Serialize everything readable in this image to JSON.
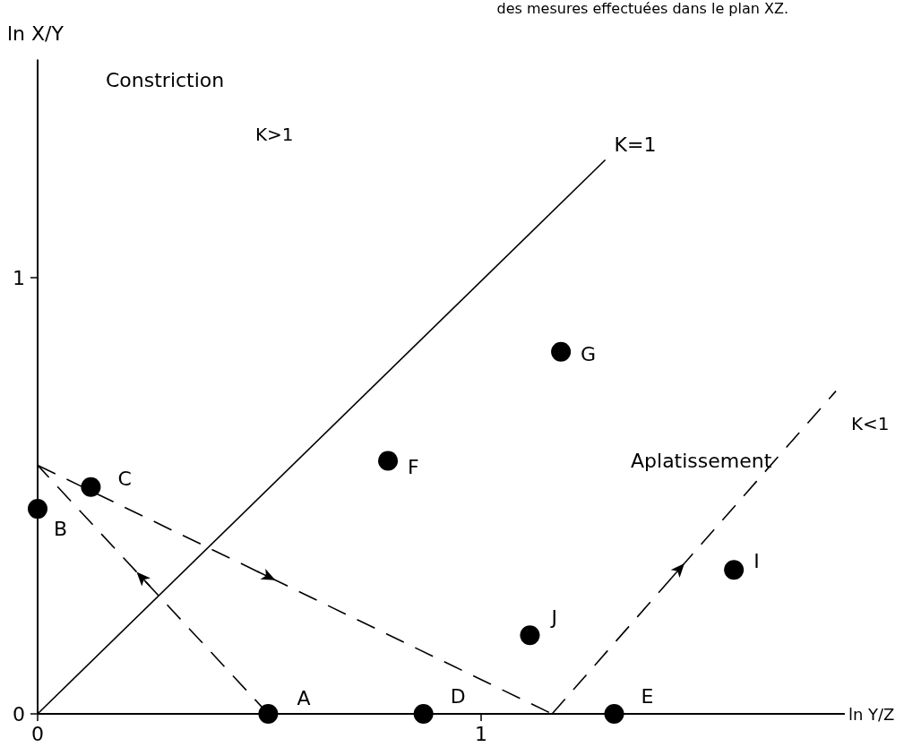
{
  "chart_data": {
    "type": "scatter",
    "xlabel": "ln Y/Z",
    "ylabel": "ln X/Y",
    "xlim": [
      0,
      1.82
    ],
    "ylim": [
      0,
      1.5
    ],
    "xticks": [
      0,
      1
    ],
    "yticks": [
      0,
      1
    ],
    "grid": false,
    "marker": "circle",
    "series": [
      {
        "color": "#000000",
        "x": [
          0.52,
          0,
          0.12,
          0.87,
          1.3,
          0.79,
          1.18,
          1.57,
          1.11
        ],
        "values": [
          0,
          0.47,
          0.52,
          0,
          0,
          0.58,
          0.83,
          0.33,
          0.18
        ]
      },
      {
        "type": "line",
        "color": "#000000",
        "line_style": "solid",
        "marker": "none",
        "x": [
          0,
          1.28
        ],
        "values": [
          0,
          1.27
        ]
      },
      {
        "type": "line",
        "color": "#000000",
        "line_style": "dashed",
        "marker": "none",
        "x": [
          0.52,
          0
        ],
        "values": [
          0,
          0.57
        ]
      },
      {
        "type": "line",
        "color": "#000000",
        "line_style": "dashed",
        "marker": "none",
        "x": [
          0,
          1.16
        ],
        "values": [
          0.57,
          0
        ]
      },
      {
        "type": "line",
        "color": "#000000",
        "line_style": "dashed",
        "marker": "none",
        "x": [
          1.16,
          1.8
        ],
        "values": [
          0,
          0.74
        ]
      }
    ],
    "annotations": [
      {
        "text": "A",
        "x": 0.52,
        "y": 0
      },
      {
        "text": "B",
        "x": 0,
        "y": 0.47
      },
      {
        "text": "C",
        "x": 0.12,
        "y": 0.52
      },
      {
        "text": "D",
        "x": 0.87,
        "y": 0
      },
      {
        "text": "E",
        "x": 1.3,
        "y": 0
      },
      {
        "text": "F",
        "x": 0.79,
        "y": 0.58
      },
      {
        "text": "G",
        "x": 1.18,
        "y": 0.83
      },
      {
        "text": "I",
        "x": 1.57,
        "y": 0.33
      },
      {
        "text": "J",
        "x": 1.11,
        "y": 0.18
      },
      {
        "text": "K=1",
        "x": 1.28,
        "y": 1.27
      },
      "Constriction",
      "K>1",
      "Aplatissement",
      "K<1",
      "des mesures effectuées dans le plan XZ."
    ]
  }
}
